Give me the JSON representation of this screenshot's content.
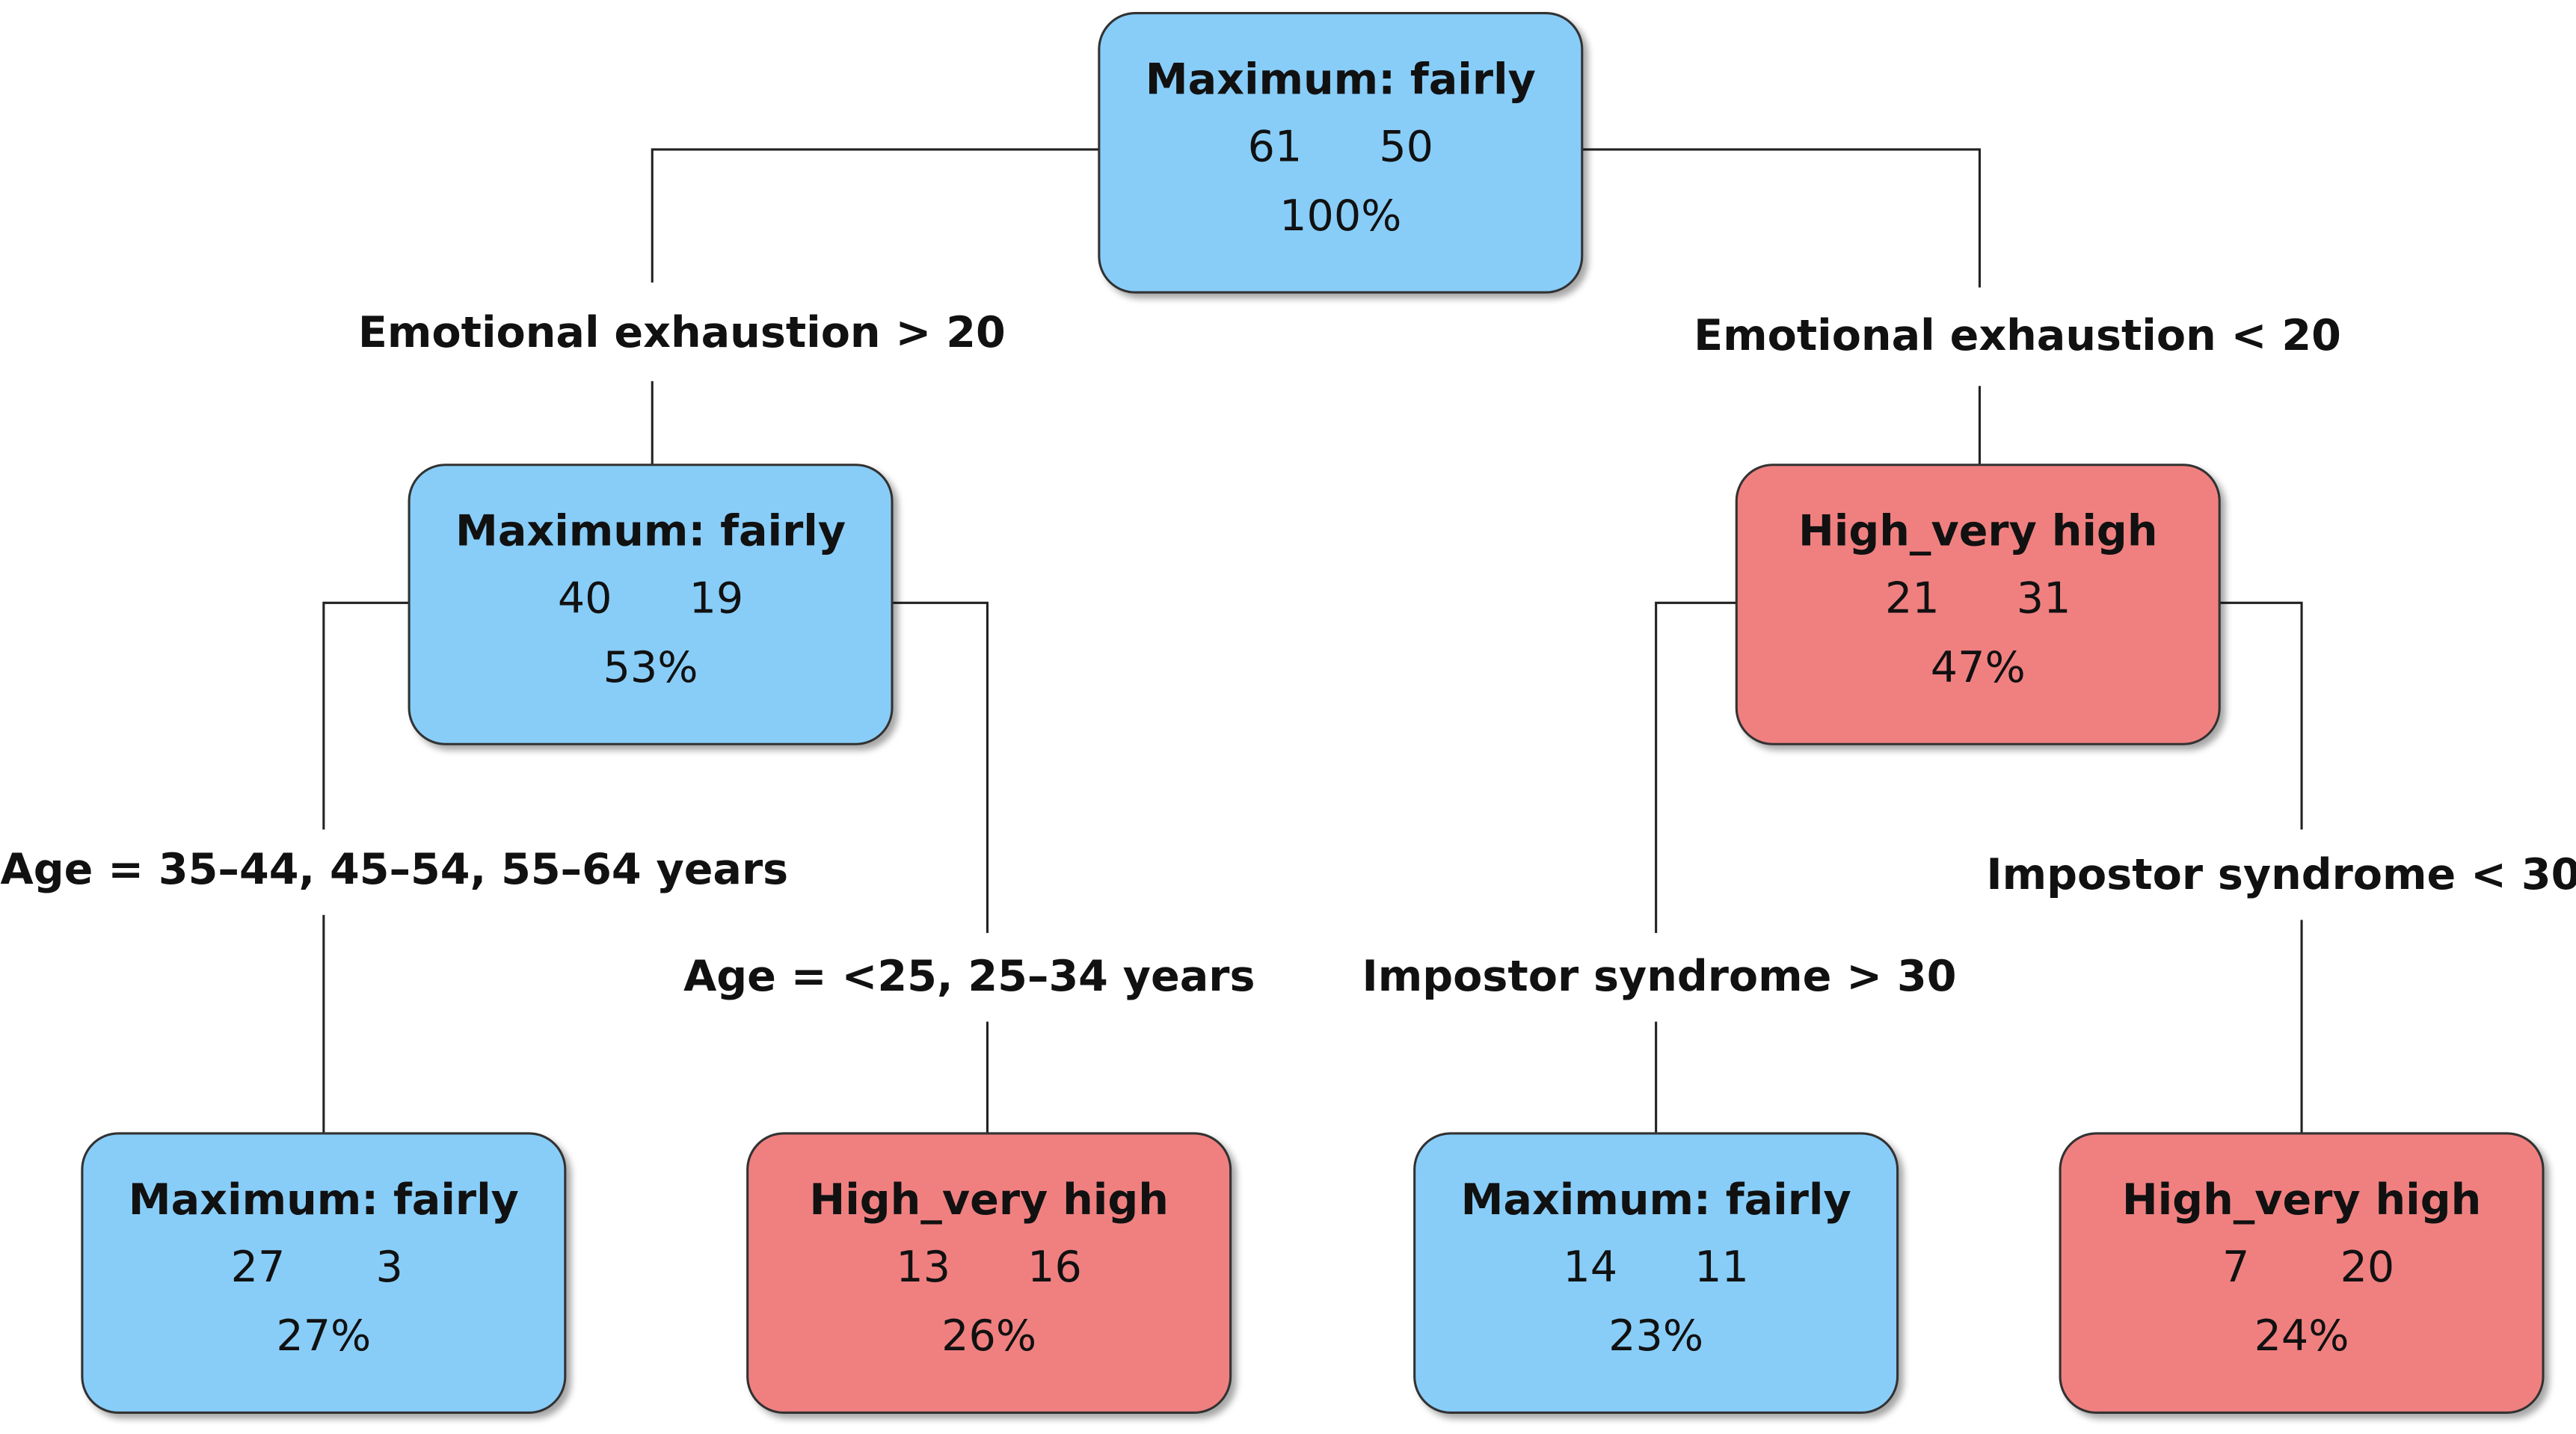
{
  "nodes": [
    {
      "label": "Maximum: fairly",
      "counts": [
        "61",
        "50"
      ],
      "percent": "100%"
    },
    {
      "label": "Maximum: fairly",
      "counts": [
        "40",
        "19"
      ],
      "percent": "53%"
    },
    {
      "label": "High_very high",
      "counts": [
        "21",
        "31"
      ],
      "percent": "47%"
    },
    {
      "label": "Maximum: fairly",
      "counts": [
        "27",
        "3"
      ],
      "percent": "27%"
    },
    {
      "label": "High_very high",
      "counts": [
        "13",
        "16"
      ],
      "percent": "26%"
    },
    {
      "label": "Maximum: fairly",
      "counts": [
        "14",
        "11"
      ],
      "percent": "23%"
    },
    {
      "label": "High_very high",
      "counts": [
        "7",
        "20"
      ],
      "percent": "24%"
    }
  ],
  "edges": [
    {
      "label": "Emotional exhaustion > 20"
    },
    {
      "label": "Emotional exhaustion < 20"
    },
    {
      "label": "Age = 35–44, 45–54, 55–64 years"
    },
    {
      "label": "Age = <25, 25–34 years"
    },
    {
      "label": "Impostor syndrome > 30"
    },
    {
      "label": "Impostor syndrome < 30"
    }
  ]
}
